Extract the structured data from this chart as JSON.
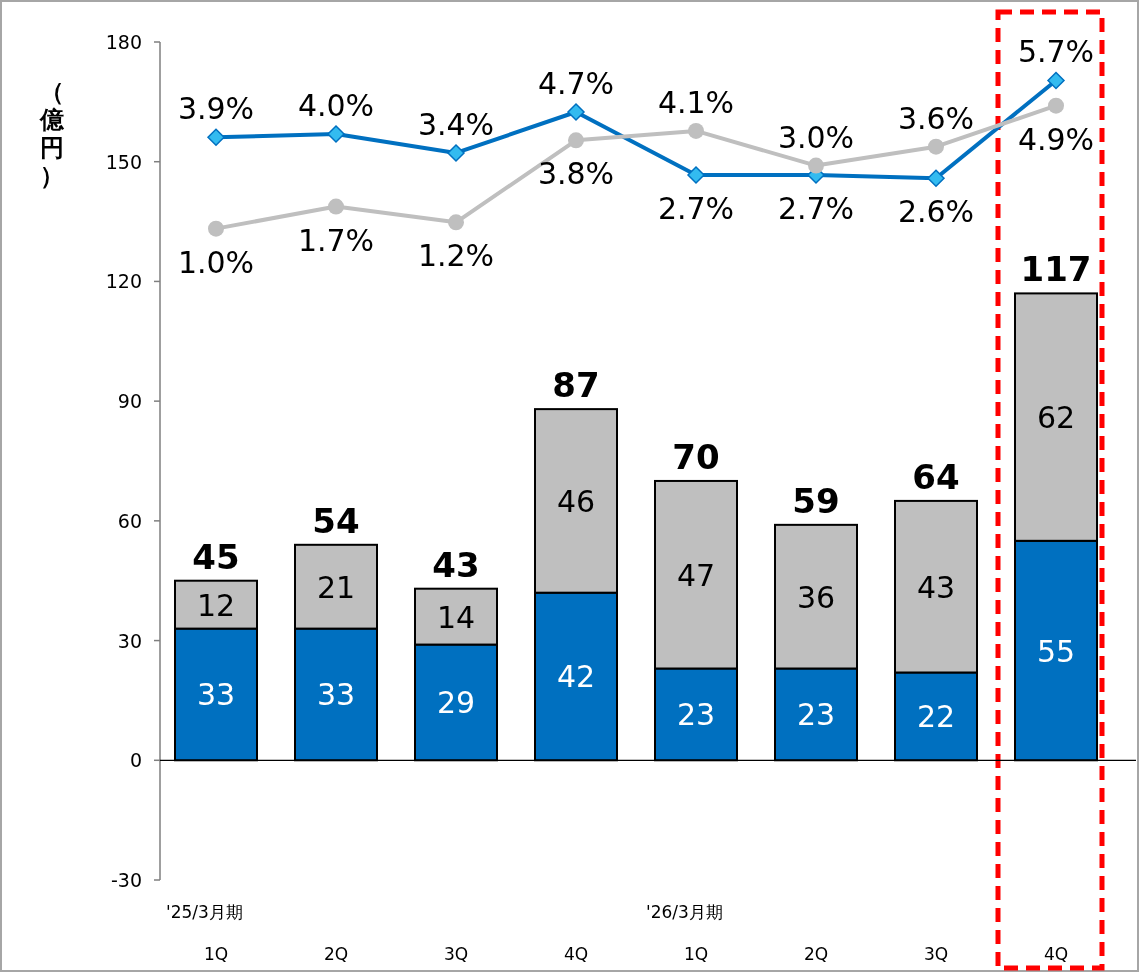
{
  "chart_data": {
    "type": "bar",
    "stacked": true,
    "ylabel": "（億円）",
    "categories": [
      "1Q",
      "2Q",
      "3Q",
      "4Q",
      "1Q",
      "2Q",
      "3Q",
      "4Q"
    ],
    "series": [
      {
        "color": "#0070c0",
        "values": [
          33,
          33,
          29,
          42,
          23,
          23,
          22,
          55
        ],
        "value_labels": [
          "33",
          "33",
          "29",
          "42",
          "23",
          "23",
          "22",
          "55"
        ]
      },
      {
        "color": "#bfbfbf",
        "values": [
          12,
          21,
          14,
          46,
          47,
          36,
          43,
          62
        ],
        "value_labels": [
          "12",
          "21",
          "14",
          "46",
          "47",
          "36",
          "43",
          "62"
        ]
      },
      {
        "type": "line",
        "axis": "y2",
        "color": "#0070c0",
        "marker": "diamond",
        "values": [
          3.9,
          4.0,
          3.4,
          4.7,
          2.7,
          2.7,
          2.6,
          5.7
        ],
        "value_labels": [
          "3.9%",
          "4.0%",
          "3.4%",
          "4.7%",
          "2.7%",
          "2.7%",
          "2.6%",
          "5.7%"
        ]
      },
      {
        "type": "line",
        "axis": "y2",
        "color": "#bfbfbf",
        "marker": "circle",
        "values": [
          1.0,
          1.7,
          1.2,
          3.8,
          4.1,
          3.0,
          3.6,
          4.9
        ],
        "value_labels": [
          "1.0%",
          "1.7%",
          "1.2%",
          "3.8%",
          "4.1%",
          "3.0%",
          "3.6%",
          "4.9%"
        ]
      }
    ],
    "totals": [
      "45",
      "54",
      "43",
      "87",
      "70",
      "59",
      "64",
      "117"
    ],
    "ylim": [
      -30,
      180
    ],
    "yticks": [
      -30,
      0,
      30,
      60,
      90,
      120,
      150,
      180
    ],
    "y2lim": [
      -19.66,
      6.92
    ],
    "annotations": [
      "'25/3月期",
      "'26/3月期"
    ]
  }
}
